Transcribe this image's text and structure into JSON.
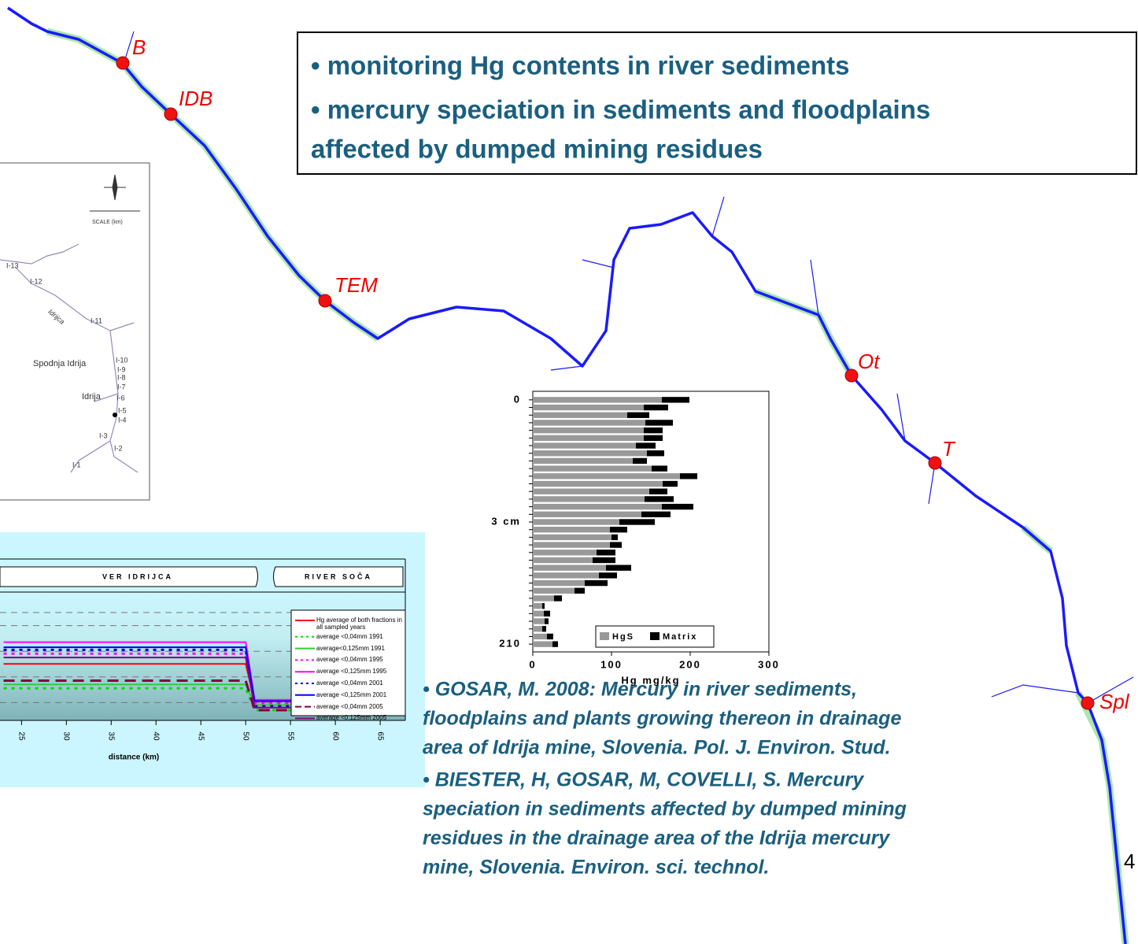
{
  "map": {
    "sites": [
      "B",
      "IDB",
      "TEM",
      "Ot",
      "T",
      "Spl"
    ]
  },
  "textbox": {
    "lines": [
      "• monitoring Hg contents in river sediments",
      "• mercury speciation in sediments and floodplains",
      "affected by dumped mining residues"
    ]
  },
  "inset_map": {
    "scale": "SCALE (km)",
    "labels": [
      "I-13",
      "I-12",
      "Idrijca",
      "I-11",
      "Spodnja Idrija",
      "I-10",
      "I-9",
      "I-8",
      "I-7",
      "Idrija",
      "I-6",
      "I-5",
      "I-4",
      "I-3",
      "I-2",
      "I-1"
    ]
  },
  "chart_data": [
    {
      "type": "bar",
      "orientation": "horizontal",
      "stacked": true,
      "categories": [
        "0",
        null,
        null,
        null,
        null,
        null,
        null,
        null,
        null,
        null,
        null,
        null,
        null,
        null,
        null,
        null,
        "3 cm",
        null,
        null,
        null,
        null,
        null,
        null,
        null,
        null,
        null,
        null,
        null,
        null,
        null,
        null,
        null,
        "210"
      ],
      "series": [
        {
          "name": "HgS",
          "color": "#999999",
          "values": [
            164,
            141,
            120,
            143,
            141,
            141,
            131,
            145,
            127,
            151,
            187,
            165,
            148,
            142,
            164,
            138,
            110,
            98,
            100,
            98,
            81,
            76,
            93,
            84,
            66,
            53,
            27,
            12,
            14,
            15,
            12,
            18,
            25
          ]
        },
        {
          "name": "Matrix",
          "color": "#000000",
          "values": [
            35,
            31,
            28,
            35,
            24,
            24,
            25,
            22,
            18,
            20,
            22,
            19,
            23,
            37,
            40,
            37,
            45,
            22,
            8,
            15,
            24,
            29,
            32,
            23,
            29,
            13,
            10,
            3,
            8,
            5,
            5,
            8,
            7
          ]
        }
      ],
      "xlim": [
        0,
        300
      ],
      "xticks": [
        0,
        100,
        200,
        300
      ],
      "x_label": "Hg   mg/kg",
      "grid": false
    },
    {
      "type": "line",
      "sections": [
        "VER IDRIJCA",
        "RIVER SOČA"
      ],
      "x": [
        23,
        50,
        51,
        67
      ],
      "xlim": [
        22.6,
        67.8
      ],
      "xticks": [
        25,
        30,
        35,
        40,
        45,
        50,
        55,
        60,
        65
      ],
      "x_label": "distance (km)",
      "ylim": [
        0,
        10
      ],
      "grid": true,
      "series": [
        {
          "name": "Hg average of both fractions in all sampled years",
          "color": "#ff0000",
          "style": "solid",
          "values": [
            4.4,
            4.4,
            1.5,
            1.5
          ]
        },
        {
          "name": "average <0,04mm 1991",
          "color": "#00dd00",
          "style": "dotted",
          "values": [
            2.5,
            2.5,
            0.8,
            0.8
          ]
        },
        {
          "name": "average<0,125mm 1991",
          "color": "#33cc33",
          "style": "solid",
          "values": [
            2.8,
            2.8,
            1.2,
            1.2
          ]
        },
        {
          "name": "average <0,04mm 1995",
          "color": "#ff00ff",
          "style": "dotted",
          "values": [
            5.2,
            5.2,
            1.35,
            1.35
          ]
        },
        {
          "name": "average <0,125mm 1995",
          "color": "#ff00ff",
          "style": "solid",
          "values": [
            6.1,
            6.1,
            1.6,
            1.6
          ]
        },
        {
          "name": "average <0,04mm 2001",
          "color": "#0000cc",
          "style": "dotted",
          "values": [
            5.5,
            5.5,
            1.1,
            1.1
          ]
        },
        {
          "name": "average <0,125mm 2001",
          "color": "#0000ff",
          "style": "solid",
          "values": [
            5.7,
            5.7,
            1.5,
            1.5
          ]
        },
        {
          "name": "average <0,04mm 2005",
          "color": "#800040",
          "style": "dashed",
          "values": [
            3.1,
            3.1,
            0.8,
            0.8
          ]
        },
        {
          "name": "average <0,125mm 2005",
          "color": "#800080",
          "style": "solid",
          "values": [
            4.9,
            4.9,
            1.0,
            1.0
          ]
        }
      ]
    }
  ],
  "references": [
    [
      "• GOSAR, M. 2008: Mercury in river sediments,",
      "floodplains and plants growing thereon in drainage",
      "area of Idrija mine, Slovenia. Pol. J. Environ. Stud."
    ],
    [
      "• BIESTER, H, GOSAR, M, COVELLI, S. Mercury",
      "speciation in sediments affected by dumped mining",
      "residues in the drainage area of the Idrija mercury",
      "mine, Slovenia. Environ. sci. technol."
    ]
  ],
  "page_number": "4"
}
